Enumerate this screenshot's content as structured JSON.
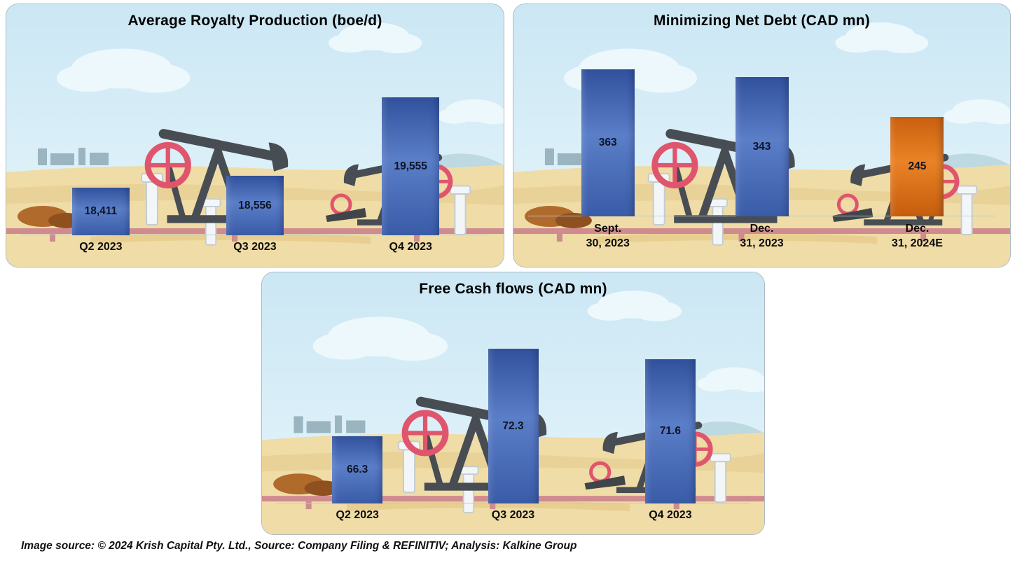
{
  "page": {
    "caption": "Image source: © 2024 Krish Capital Pty. Ltd., Source: Company Filing & REFINITIV; Analysis: Kalkine Group"
  },
  "colors": {
    "bar_blue": "#3a5ca8",
    "bar_orange": "#d9700f",
    "sky": "#cfeaf6",
    "sand": "#efdca6",
    "pumpjack": "#474d52",
    "wheel_red": "#e0556e"
  },
  "chart_data": [
    {
      "type": "bar",
      "title": "Average Royalty Production (boe/d)",
      "categories": [
        "Q2 2023",
        "Q3 2023",
        "Q4 2023"
      ],
      "values": [
        18411,
        18556,
        19555
      ],
      "value_labels": [
        "18,411",
        "18,556",
        "19,555"
      ],
      "ylim": [
        17800,
        19800
      ],
      "bar_colors": [
        "blue",
        "blue",
        "blue"
      ],
      "xlabel": "",
      "ylabel": "",
      "grid": false,
      "legend": "none",
      "value_label_position": "center-inside-bar"
    },
    {
      "type": "bar",
      "title": "Minimizing Net Debt (CAD mn)",
      "categories": [
        "Sept.\n30, 2023",
        "Dec.\n31, 2023",
        "Dec.\n31, 2024E"
      ],
      "values": [
        363,
        343,
        245
      ],
      "value_labels": [
        "363",
        "343",
        "245"
      ],
      "ylim": [
        0,
        380
      ],
      "bar_colors": [
        "blue",
        "blue",
        "orange"
      ],
      "xlabel": "",
      "ylabel": "",
      "grid": false,
      "legend": "none",
      "value_label_position": "center-inside-bar"
    },
    {
      "type": "bar",
      "title": "Free Cash flows (CAD mn)",
      "categories": [
        "Q2 2023",
        "Q3 2023",
        "Q4 2023"
      ],
      "values": [
        66.3,
        72.3,
        71.6
      ],
      "value_labels": [
        "66.3",
        "72.3",
        "71.6"
      ],
      "ylim": [
        61.7,
        73.5
      ],
      "bar_colors": [
        "blue",
        "blue",
        "blue"
      ],
      "xlabel": "",
      "ylabel": "",
      "grid": false,
      "legend": "none",
      "value_label_position": "center-inside-bar"
    }
  ]
}
